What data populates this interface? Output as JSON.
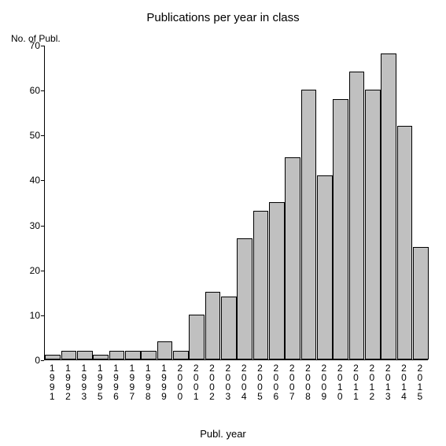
{
  "chart": {
    "type": "bar",
    "title": "Publications per year in class",
    "title_fontsize": 15,
    "y_axis_title": "No. of Publ.",
    "x_axis_title": "Publ. year",
    "label_fontsize": 12,
    "background_color": "#ffffff",
    "bar_color": "#c0c0c0",
    "bar_border_color": "#000000",
    "axis_color": "#000000",
    "text_color": "#000000",
    "ylim": [
      0,
      70
    ],
    "ytick_step": 10,
    "yticks": [
      0,
      10,
      20,
      30,
      40,
      50,
      60,
      70
    ],
    "categories": [
      "1991",
      "1992",
      "1993",
      "1995",
      "1996",
      "1997",
      "1998",
      "1999",
      "2000",
      "2001",
      "2002",
      "2003",
      "2004",
      "2005",
      "2006",
      "2007",
      "2008",
      "2009",
      "2010",
      "2011",
      "2012",
      "2013",
      "2014",
      "2015"
    ],
    "values": [
      1,
      2,
      2,
      1,
      2,
      2,
      2,
      4,
      2,
      10,
      15,
      14,
      27,
      33,
      35,
      45,
      60,
      41,
      58,
      64,
      60,
      68,
      52,
      25
    ],
    "bar_width_ratio": 0.98
  }
}
